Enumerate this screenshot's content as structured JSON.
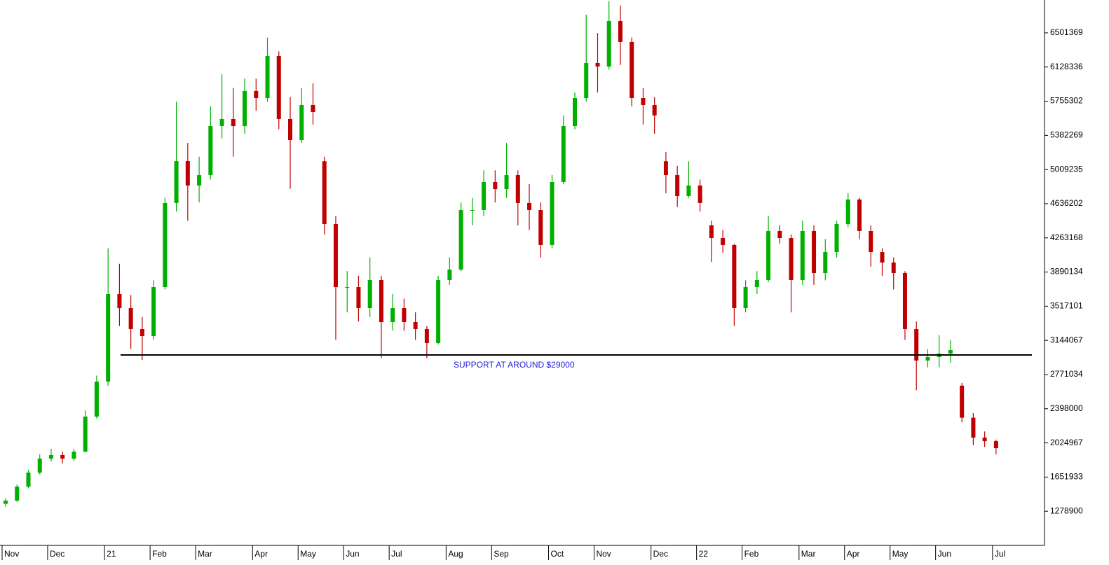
{
  "chart_data": {
    "type": "candlestick",
    "categories": [
      "Nov",
      null,
      null,
      null,
      "Dec",
      null,
      null,
      null,
      null,
      "21",
      null,
      null,
      null,
      "Feb",
      null,
      null,
      null,
      "Mar",
      null,
      null,
      null,
      null,
      "Apr",
      null,
      null,
      null,
      "May",
      null,
      null,
      null,
      "Jun",
      null,
      null,
      null,
      "Jul",
      null,
      null,
      null,
      null,
      "Aug",
      null,
      null,
      null,
      "Sep",
      null,
      null,
      null,
      null,
      "Oct",
      null,
      null,
      null,
      "Nov",
      null,
      null,
      null,
      null,
      "Dec",
      null,
      null,
      null,
      "22",
      null,
      null,
      null,
      "Feb",
      null,
      null,
      null,
      null,
      "Mar",
      null,
      null,
      null,
      "Apr",
      null,
      null,
      null,
      "May",
      null,
      null,
      null,
      "Jun",
      null,
      null,
      null,
      null,
      "Jul"
    ],
    "open": [
      1360000,
      1395000,
      1548000,
      1701000,
      1853000,
      1892000,
      1853000,
      1930000,
      2312000,
      2694000,
      3650000,
      3497000,
      3268000,
      3191000,
      3726000,
      4644000,
      5102000,
      4835000,
      4949000,
      5484000,
      5561000,
      5484000,
      5867000,
      5790000,
      6249000,
      5561000,
      5331000,
      5714000,
      5100000,
      4414000,
      3726000,
      3726000,
      3497000,
      3803000,
      3344000,
      3497000,
      3344000,
      3268000,
      3115000,
      3803000,
      3917000,
      4567000,
      4567000,
      4873000,
      4796000,
      4949000,
      4644000,
      4567000,
      4185000,
      4873000,
      5484000,
      5790000,
      6172000,
      6134000,
      6631000,
      6402000,
      5790000,
      5714000,
      5100000,
      4949000,
      4720000,
      4835000,
      4400000,
      4261000,
      4185000,
      3497000,
      3726000,
      3803000,
      4338000,
      4261000,
      3803000,
      4338000,
      3879000,
      4108000,
      4414000,
      4682000,
      4338000,
      4108000,
      3994000,
      3879000,
      3268000,
      2924000,
      2962000,
      3000000,
      2650000,
      2300000,
      2083000,
      2044000
    ],
    "high": [
      1420000,
      1570000,
      1730000,
      1900000,
      1960000,
      1930000,
      1960000,
      2380000,
      2760000,
      4150000,
      3980000,
      3640000,
      3400000,
      3800000,
      4700000,
      5750000,
      5300000,
      5150000,
      5700000,
      6050000,
      5900000,
      6000000,
      6000000,
      6450000,
      6300000,
      5800000,
      5900000,
      5950000,
      5150000,
      4500000,
      3900000,
      3850000,
      4050000,
      3850000,
      3650000,
      3600000,
      3450000,
      3300000,
      3850000,
      4050000,
      4650000,
      4700000,
      5000000,
      5000000,
      5300000,
      5000000,
      4850000,
      4650000,
      4950000,
      5600000,
      5850000,
      6700000,
      6500000,
      6850000,
      6800000,
      6450000,
      5900000,
      5800000,
      5200000,
      5050000,
      5100000,
      4900000,
      4450000,
      4350000,
      4200000,
      3800000,
      3900000,
      4500000,
      4400000,
      4300000,
      4450000,
      4400000,
      4250000,
      4450000,
      4750000,
      4700000,
      4400000,
      4150000,
      4050000,
      3900000,
      3350000,
      3050000,
      3200000,
      3150000,
      2680000,
      2350000,
      2150000,
      2060000
    ],
    "low": [
      1330000,
      1380000,
      1530000,
      1680000,
      1820000,
      1800000,
      1830000,
      1920000,
      2290000,
      2650000,
      3300000,
      3050000,
      2930000,
      3150000,
      3700000,
      4550000,
      4450000,
      4650000,
      4900000,
      5350000,
      5150000,
      5400000,
      5650000,
      5750000,
      5450000,
      4800000,
      5300000,
      5500000,
      4300000,
      3150000,
      3450000,
      3350000,
      3400000,
      2950000,
      3250000,
      3250000,
      3150000,
      2950000,
      3100000,
      3750000,
      3900000,
      4400000,
      4500000,
      4650000,
      4700000,
      4400000,
      4350000,
      4050000,
      4150000,
      4850000,
      5450000,
      5750000,
      5850000,
      6100000,
      6150000,
      5700000,
      5500000,
      5400000,
      4750000,
      4600000,
      4700000,
      4550000,
      4000000,
      4100000,
      3300000,
      3450000,
      3650000,
      3780000,
      4200000,
      3450000,
      3750000,
      3750000,
      3800000,
      4050000,
      4380000,
      4250000,
      3950000,
      3850000,
      3700000,
      3150000,
      2600000,
      2850000,
      2850000,
      2900000,
      2250000,
      2000000,
      1980000,
      1900000
    ],
    "close": [
      1395000,
      1548000,
      1701000,
      1853000,
      1892000,
      1853000,
      1930000,
      2312000,
      2694000,
      3650000,
      3497000,
      3268000,
      3191000,
      3726000,
      4644000,
      5102000,
      4835000,
      4949000,
      5484000,
      5561000,
      5484000,
      5867000,
      5790000,
      6249000,
      5561000,
      5331000,
      5714000,
      5637000,
      4414000,
      3726000,
      3726000,
      3497000,
      3803000,
      3344000,
      3497000,
      3344000,
      3268000,
      3115000,
      3803000,
      3917000,
      4567000,
      4567000,
      4873000,
      4796000,
      4949000,
      4644000,
      4567000,
      4185000,
      4873000,
      5484000,
      5790000,
      6172000,
      6134000,
      6631000,
      6402000,
      5790000,
      5714000,
      5599000,
      4949000,
      4720000,
      4835000,
      4644000,
      4261000,
      4185000,
      3497000,
      3726000,
      3803000,
      4338000,
      4261000,
      3803000,
      4338000,
      3879000,
      4108000,
      4414000,
      4682000,
      4338000,
      4108000,
      3994000,
      3879000,
      3268000,
      2924000,
      2962000,
      3000000,
      3038000,
      2300000,
      2083000,
      2044000,
      1968000
    ],
    "up_color": "#00b000",
    "down_color": "#c00000",
    "ylim": [
      906000,
      6860000
    ],
    "yticks": [
      1278900,
      1651933,
      2024967,
      2398000,
      2771034,
      3144067,
      3517101,
      3890134,
      4263168,
      4636202,
      5009235,
      5382269,
      5755302,
      6128336,
      6501369
    ],
    "support": {
      "value": 2985000,
      "label": "SUPPORT AT AROUND $29000"
    }
  }
}
